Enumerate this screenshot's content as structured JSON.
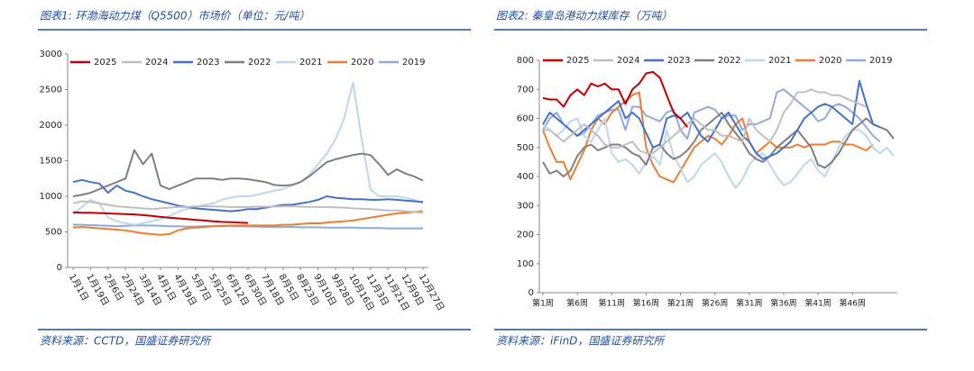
{
  "chart_data": [
    {
      "type": "line",
      "title": "图表1: 环渤海动力煤（Q5500）市场价（单位：元/吨）",
      "source": "资料来源：CCTD，国盛证券研究所",
      "categories": [
        "1月1日",
        null,
        "1月19日",
        null,
        "2月6日",
        null,
        "2月24日",
        null,
        "3月14日",
        null,
        "4月1日",
        null,
        "4月19日",
        null,
        "5月7日",
        null,
        "5月25日",
        null,
        "6月12日",
        null,
        "6月30日",
        null,
        "7月18日",
        null,
        "8月5日",
        null,
        "8月23日",
        null,
        "9月10日",
        null,
        "9月28日",
        null,
        "10月16日",
        null,
        "11月3日",
        null,
        "11月21日",
        null,
        "12月9日",
        null,
        "12月27日"
      ],
      "ylim": [
        0,
        3000
      ],
      "yticks": [
        0,
        500,
        1000,
        1500,
        2000,
        2500,
        3000
      ],
      "grid": false,
      "legend": "top",
      "series": [
        {
          "name": "2025",
          "color": "#c00000",
          "values": [
            775,
            770,
            768,
            765,
            760,
            755,
            750,
            745,
            735,
            725,
            710,
            700,
            690,
            680,
            670,
            660,
            650,
            640,
            635,
            630,
            625,
            null,
            null,
            null,
            null,
            null,
            null,
            null,
            null,
            null,
            null,
            null,
            null,
            null,
            null,
            null,
            null,
            null,
            null,
            null,
            null
          ]
        },
        {
          "name": "2024",
          "color": "#bfbfbf",
          "values": [
            900,
            930,
            920,
            900,
            880,
            860,
            850,
            840,
            830,
            820,
            830,
            840,
            850,
            850,
            860,
            860,
            860,
            855,
            850,
            850,
            850,
            855,
            855,
            855,
            860,
            860,
            855,
            850,
            850,
            850,
            845,
            840,
            830,
            825,
            820,
            810,
            800,
            800,
            790,
            780,
            770
          ]
        },
        {
          "name": "2023",
          "color": "#4472c4",
          "values": [
            1200,
            1230,
            1200,
            1180,
            1050,
            1150,
            1080,
            1050,
            1000,
            960,
            930,
            900,
            870,
            850,
            830,
            820,
            810,
            800,
            790,
            800,
            820,
            820,
            840,
            860,
            880,
            880,
            900,
            920,
            950,
            1000,
            980,
            970,
            960,
            960,
            950,
            950,
            960,
            950,
            940,
            930,
            920
          ]
        },
        {
          "name": "2022",
          "color": "#7f7f7f",
          "values": [
            1000,
            1020,
            1050,
            1100,
            1150,
            1200,
            1250,
            1650,
            1450,
            1600,
            1150,
            1100,
            1150,
            1200,
            1250,
            1250,
            1250,
            1230,
            1250,
            1250,
            1240,
            1220,
            1200,
            1160,
            1150,
            1160,
            1200,
            1280,
            1380,
            1480,
            1520,
            1550,
            1580,
            1600,
            1580,
            1450,
            1300,
            1380,
            1320,
            1280,
            1220
          ]
        },
        {
          "name": "2021",
          "color": "#bdd7ee",
          "values": [
            750,
            850,
            950,
            900,
            700,
            650,
            620,
            600,
            620,
            650,
            680,
            720,
            780,
            820,
            850,
            880,
            900,
            950,
            980,
            1000,
            1000,
            1020,
            1050,
            1080,
            1100,
            1150,
            1200,
            1300,
            1450,
            1600,
            1800,
            2100,
            2600,
            1800,
            1100,
            1000,
            1000,
            1000,
            980,
            950,
            900
          ]
        },
        {
          "name": "2020",
          "color": "#ed7d31",
          "values": [
            560,
            570,
            560,
            550,
            540,
            530,
            520,
            500,
            480,
            470,
            460,
            470,
            520,
            550,
            560,
            570,
            580,
            580,
            590,
            590,
            590,
            590,
            590,
            590,
            600,
            600,
            610,
            620,
            620,
            630,
            640,
            650,
            660,
            680,
            700,
            720,
            740,
            760,
            770,
            780,
            790
          ]
        },
        {
          "name": "2019",
          "color": "#8faadc",
          "values": [
            600,
            600,
            595,
            590,
            585,
            580,
            585,
            590,
            590,
            590,
            585,
            580,
            580,
            575,
            575,
            580,
            580,
            585,
            585,
            580,
            575,
            575,
            570,
            570,
            570,
            570,
            565,
            565,
            565,
            560,
            560,
            560,
            560,
            555,
            555,
            555,
            550,
            550,
            550,
            550,
            550
          ]
        }
      ]
    },
    {
      "type": "line",
      "title": "图表2: 秦皇岛港动力煤库存（万吨）",
      "source": "资料来源：iFinD，国盛证券研究所",
      "categories": [
        "第1周",
        null,
        null,
        null,
        null,
        "第6周",
        null,
        null,
        null,
        null,
        "第11周",
        null,
        null,
        null,
        null,
        "第16周",
        null,
        null,
        null,
        null,
        "第21周",
        null,
        null,
        null,
        null,
        "第26周",
        null,
        null,
        null,
        null,
        "第31周",
        null,
        null,
        null,
        null,
        "第36周",
        null,
        null,
        null,
        null,
        "第41周",
        null,
        null,
        null,
        null,
        "第46周",
        null,
        null,
        null,
        null,
        null,
        null
      ],
      "ylim": [
        0,
        800
      ],
      "yticks": [
        0,
        100,
        200,
        300,
        400,
        500,
        600,
        700,
        800
      ],
      "grid": false,
      "legend": "top",
      "series": [
        {
          "name": "2025",
          "color": "#c00000",
          "values": [
            670,
            665,
            665,
            640,
            680,
            700,
            680,
            720,
            710,
            720,
            700,
            700,
            650,
            700,
            720,
            755,
            760,
            740,
            680,
            620,
            600,
            570,
            null,
            null,
            null,
            null,
            null,
            null,
            null,
            null,
            null,
            null,
            null,
            null,
            null,
            null,
            null,
            null,
            null,
            null,
            null,
            null,
            null,
            null,
            null,
            null,
            null,
            null,
            null,
            null,
            null,
            null
          ]
        },
        {
          "name": "2024",
          "color": "#bfbfbf",
          "values": [
            560,
            560,
            540,
            520,
            540,
            560,
            580,
            560,
            540,
            510,
            500,
            500,
            510,
            520,
            490,
            480,
            480,
            500,
            520,
            540,
            560,
            580,
            600,
            580,
            560,
            560,
            540,
            540,
            530,
            520,
            600,
            560,
            540,
            520,
            560,
            620,
            650,
            690,
            690,
            700,
            690,
            690,
            680,
            680,
            670,
            660,
            650,
            640,
            null,
            null,
            null,
            null
          ]
        },
        {
          "name": "2023",
          "color": "#4472c4",
          "values": [
            580,
            620,
            600,
            580,
            560,
            540,
            560,
            580,
            600,
            620,
            640,
            660,
            600,
            620,
            600,
            550,
            500,
            510,
            600,
            610,
            600,
            620,
            580,
            540,
            520,
            560,
            600,
            620,
            580,
            540,
            520,
            480,
            460,
            470,
            480,
            500,
            520,
            560,
            600,
            620,
            640,
            650,
            640,
            620,
            600,
            580,
            730,
            650,
            580,
            570,
            null,
            null
          ]
        },
        {
          "name": "2022",
          "color": "#7f7f7f",
          "values": [
            450,
            410,
            420,
            400,
            420,
            470,
            500,
            510,
            490,
            500,
            510,
            510,
            500,
            480,
            470,
            440,
            500,
            510,
            480,
            460,
            470,
            490,
            520,
            560,
            580,
            600,
            620,
            580,
            550,
            520,
            480,
            460,
            450,
            470,
            500,
            520,
            540,
            560,
            530,
            500,
            440,
            430,
            450,
            480,
            520,
            560,
            580,
            600,
            580,
            570,
            560,
            530
          ]
        },
        {
          "name": "2021",
          "color": "#bdd7ee",
          "values": [
            580,
            560,
            540,
            560,
            590,
            600,
            540,
            520,
            560,
            600,
            480,
            450,
            460,
            440,
            410,
            450,
            470,
            440,
            560,
            470,
            430,
            380,
            400,
            440,
            460,
            480,
            450,
            400,
            360,
            390,
            440,
            470,
            480,
            440,
            400,
            370,
            380,
            410,
            440,
            460,
            420,
            400,
            450,
            500,
            540,
            560,
            560,
            540,
            500,
            480,
            500,
            470
          ]
        },
        {
          "name": "2020",
          "color": "#ed7d31",
          "values": [
            560,
            500,
            450,
            450,
            390,
            440,
            490,
            560,
            600,
            580,
            620,
            640,
            660,
            680,
            690,
            500,
            440,
            400,
            390,
            380,
            420,
            460,
            500,
            520,
            540,
            530,
            510,
            540,
            580,
            600,
            520,
            480,
            500,
            520,
            500,
            500,
            500,
            510,
            500,
            510,
            510,
            510,
            520,
            520,
            510,
            510,
            500,
            490,
            510,
            null,
            null,
            null
          ]
        },
        {
          "name": "2019",
          "color": "#8faadc",
          "values": [
            560,
            600,
            620,
            580,
            560,
            540,
            550,
            580,
            610,
            620,
            630,
            630,
            560,
            640,
            640,
            610,
            600,
            590,
            620,
            630,
            560,
            530,
            620,
            630,
            640,
            630,
            600,
            610,
            610,
            560,
            580,
            580,
            590,
            600,
            690,
            700,
            680,
            660,
            640,
            620,
            590,
            600,
            640,
            650,
            640,
            620,
            600,
            570,
            540,
            520,
            null,
            null
          ]
        }
      ]
    }
  ]
}
